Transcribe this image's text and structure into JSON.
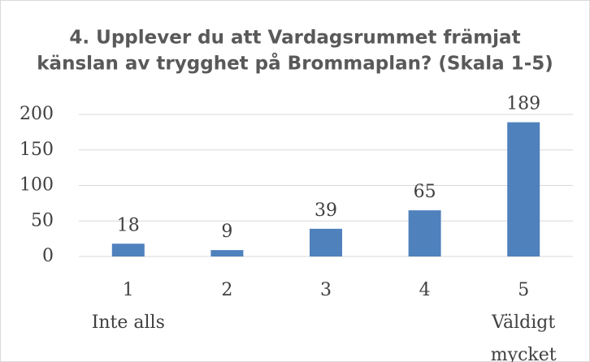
{
  "chart_data": {
    "type": "bar",
    "title": [
      "4. Upplever du att Vardagsrummet främjat",
      "känslan av trygghet på Brommaplan? (Skala 1-5)"
    ],
    "categories": [
      [
        "1",
        "Inte alls"
      ],
      [
        "2"
      ],
      [
        "3"
      ],
      [
        "4"
      ],
      [
        "5",
        "Väldigt",
        "mycket"
      ]
    ],
    "values": [
      18,
      9,
      39,
      65,
      189
    ],
    "color": "#4f81bd",
    "ylim": [
      0,
      200
    ],
    "yticks": [
      0,
      50,
      100,
      150,
      200
    ],
    "grid": true
  }
}
